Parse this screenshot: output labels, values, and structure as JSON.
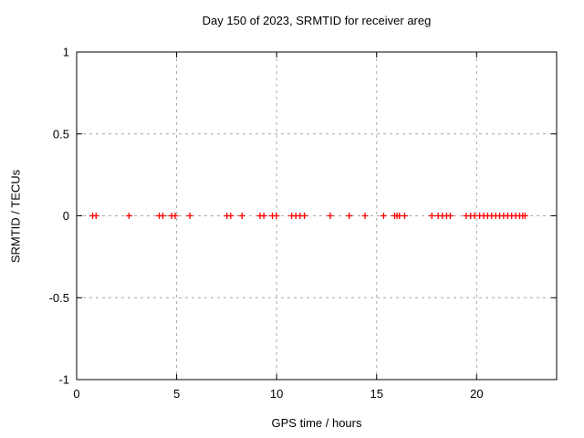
{
  "chart_data": {
    "type": "scatter",
    "title": "Day 150 of 2023, SRMTID for receiver areg",
    "xlabel": "GPS time / hours",
    "ylabel": "SRMTID / TECUs",
    "xlim": [
      0,
      24
    ],
    "ylim": [
      -1,
      1
    ],
    "xticks": [
      0,
      5,
      10,
      15,
      20
    ],
    "xticklabels": [
      "0",
      "5",
      "10",
      "15",
      "20"
    ],
    "yticks": [
      -1,
      -0.5,
      0,
      0.5,
      1
    ],
    "yticklabels": [
      "-1",
      "-0.5",
      "0",
      "0.5",
      "1"
    ],
    "grid": true,
    "grid_color": "#a8a8a8",
    "legend": "none",
    "marker_shape": "plus",
    "marker_color": "#ff0000",
    "axis_color": "#000000",
    "series": [
      {
        "name": "SRMTID",
        "x": [
          0.8,
          0.97,
          2.62,
          4.13,
          4.31,
          4.75,
          4.93,
          5.66,
          7.51,
          7.7,
          8.27,
          9.17,
          9.36,
          9.79,
          9.99,
          10.75,
          10.96,
          11.17,
          11.39,
          12.68,
          13.63,
          14.42,
          15.35,
          15.9,
          16.02,
          16.14,
          16.4,
          17.76,
          18.08,
          18.29,
          18.5,
          18.68,
          19.48,
          19.7,
          19.9,
          20.15,
          20.35,
          20.55,
          20.75,
          20.95,
          21.15,
          21.35,
          21.55,
          21.75,
          21.95,
          22.15,
          22.3,
          22.42
        ],
        "y": [
          0,
          0,
          0,
          0,
          0,
          0,
          0,
          0,
          0,
          0,
          0,
          0,
          0,
          0,
          0,
          0,
          0,
          0,
          0,
          0,
          0,
          0,
          0,
          0,
          0,
          0,
          0,
          0,
          0,
          0,
          0,
          0,
          0,
          0,
          0,
          0,
          0,
          0,
          0,
          0,
          0,
          0,
          0,
          0,
          0,
          0,
          0,
          0
        ]
      }
    ]
  }
}
